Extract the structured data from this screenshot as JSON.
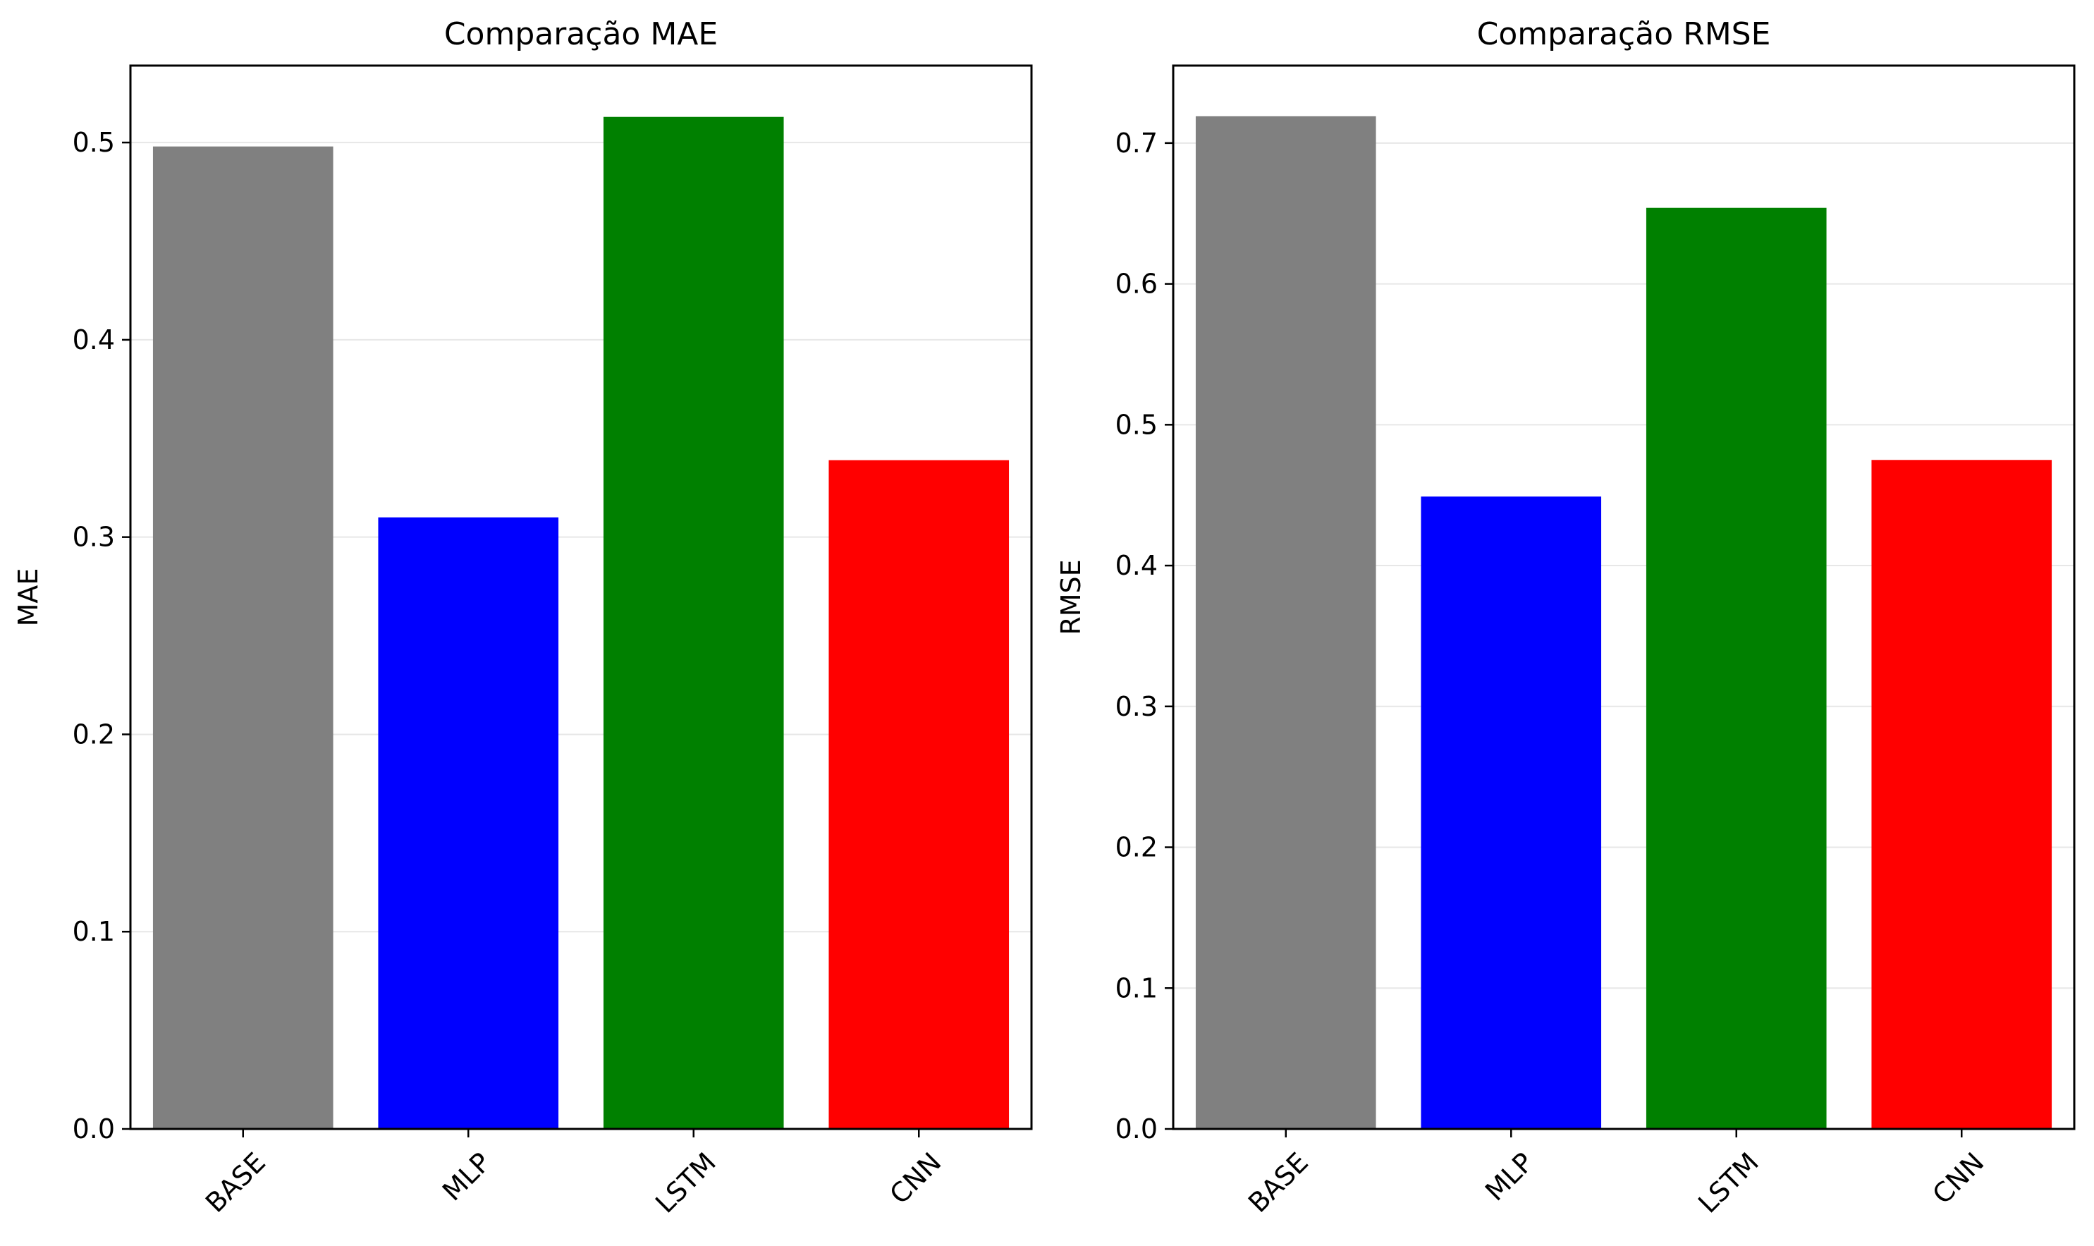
{
  "chart_data": [
    {
      "type": "bar",
      "title": "Comparação MAE",
      "xlabel": "",
      "ylabel": "MAE",
      "categories": [
        "BASE",
        "MLP",
        "LSTM",
        "CNN"
      ],
      "values": [
        0.498,
        0.31,
        0.513,
        0.339
      ],
      "colors": [
        "#808080",
        "#0000ff",
        "#008000",
        "#ff0000"
      ],
      "ylim": [
        0,
        0.539
      ],
      "yticks": [
        0.0,
        0.1,
        0.2,
        0.3,
        0.4,
        0.5
      ],
      "ytick_labels": [
        "0.0",
        "0.1",
        "0.2",
        "0.3",
        "0.4",
        "0.5"
      ],
      "grid": "y",
      "legend": "none"
    },
    {
      "type": "bar",
      "title": "Comparação RMSE",
      "xlabel": "",
      "ylabel": "RMSE",
      "categories": [
        "BASE",
        "MLP",
        "LSTM",
        "CNN"
      ],
      "values": [
        0.719,
        0.449,
        0.654,
        0.475
      ],
      "colors": [
        "#808080",
        "#0000ff",
        "#008000",
        "#ff0000"
      ],
      "ylim": [
        0,
        0.755
      ],
      "yticks": [
        0.0,
        0.1,
        0.2,
        0.3,
        0.4,
        0.5,
        0.6,
        0.7
      ],
      "ytick_labels": [
        "0.0",
        "0.1",
        "0.2",
        "0.3",
        "0.4",
        "0.5",
        "0.6",
        "0.7"
      ],
      "grid": "y",
      "legend": "none"
    }
  ]
}
